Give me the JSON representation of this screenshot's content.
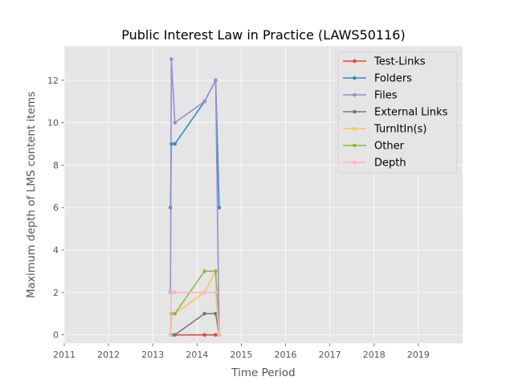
{
  "chart_data": {
    "type": "line",
    "title": "Public Interest Law in Practice (LAWS50116)",
    "xlabel": "Time Period",
    "ylabel": "Maximum depth of LMS content items",
    "xlim": [
      2011,
      2020
    ],
    "ylim": [
      -0.4,
      13.6
    ],
    "x_ticks": [
      2011,
      2012,
      2013,
      2014,
      2015,
      2016,
      2017,
      2018,
      2019
    ],
    "x_tick_labels": [
      "2011",
      "2012",
      "2013",
      "2014",
      "2015",
      "2016",
      "2017",
      "2018",
      "2019"
    ],
    "y_ticks": [
      0,
      2,
      4,
      6,
      8,
      10,
      12
    ],
    "y_tick_labels": [
      "0",
      "2",
      "4",
      "6",
      "8",
      "10",
      "12"
    ],
    "grid": true,
    "legend_position": "top-right",
    "series": [
      {
        "name": "Test-Links",
        "color": "#E24A33",
        "x": [
          2013.4,
          2013.42,
          2013.5,
          2014.17,
          2014.42,
          2014.5
        ],
        "y": [
          0,
          0,
          0,
          0,
          0,
          0
        ]
      },
      {
        "name": "Folders",
        "color": "#348ABD",
        "x": [
          2013.4,
          2013.42,
          2013.5,
          2014.17,
          2014.42,
          2014.5
        ],
        "y": [
          6,
          9,
          9,
          11,
          12,
          6
        ]
      },
      {
        "name": "Files",
        "color": "#988ED5",
        "x": [
          2013.4,
          2013.42,
          2013.5,
          2014.17,
          2014.42,
          2014.5
        ],
        "y": [
          2,
          13,
          10,
          11,
          12,
          0
        ]
      },
      {
        "name": "External Links",
        "color": "#777777",
        "x": [
          2013.4,
          2013.42,
          2013.5,
          2014.17,
          2014.42,
          2014.5
        ],
        "y": [
          0,
          0,
          0,
          1,
          1,
          0
        ]
      },
      {
        "name": "TurnItIn(s)",
        "color": "#FBC15E",
        "x": [
          2013.4,
          2013.42,
          2013.5,
          2014.17,
          2014.42,
          2014.5
        ],
        "y": [
          0,
          1,
          1,
          2,
          3,
          0
        ]
      },
      {
        "name": "Other",
        "color": "#8EBA42",
        "x": [
          2013.4,
          2013.42,
          2013.5,
          2014.17,
          2014.42,
          2014.5
        ],
        "y": [
          0,
          1,
          1,
          3,
          3,
          0
        ]
      },
      {
        "name": "Depth",
        "color": "#FFB5B8",
        "x": [
          2013.4,
          2013.42,
          2013.5,
          2014.17,
          2014.42,
          2014.5
        ],
        "y": [
          0,
          2,
          2,
          2,
          2,
          0
        ]
      }
    ]
  }
}
